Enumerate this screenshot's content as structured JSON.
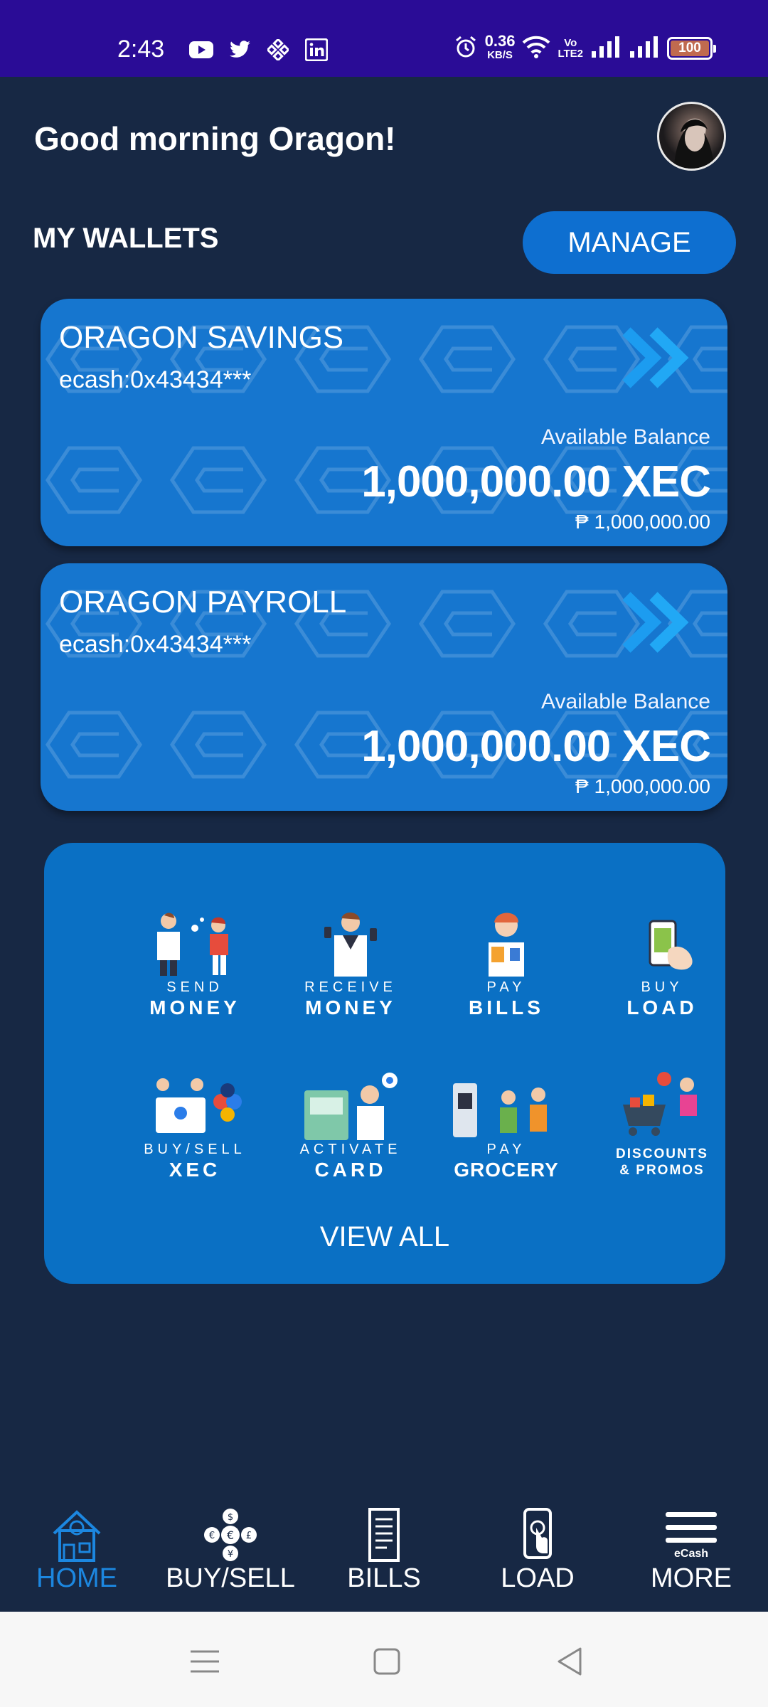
{
  "status_bar": {
    "time": "2:43",
    "net_speed_value": "0.36",
    "net_speed_unit": "KB/S",
    "volte_top": "Vo",
    "volte_bottom": "LTE2",
    "battery": "100",
    "app_icons": [
      "youtube-icon",
      "twitter-icon",
      "binance-icon",
      "linkedin-icon"
    ]
  },
  "header": {
    "greeting": "Good morning Oragon!"
  },
  "wallets_section": {
    "title": "MY WALLETS",
    "manage_label": "MANAGE"
  },
  "wallets": [
    {
      "name": "ORAGON SAVINGS",
      "address": "ecash:0x43434***",
      "balance_label": "Available Balance",
      "balance_xec": "1,000,000.00 XEC",
      "balance_php": "₱ 1,000,000.00"
    },
    {
      "name": "ORAGON PAYROLL",
      "address": "ecash:0x43434***",
      "balance_label": "Available Balance",
      "balance_xec": "1,000,000.00 XEC",
      "balance_php": "₱ 1,000,000.00"
    }
  ],
  "services": [
    {
      "small": "SEND",
      "big": "MONEY"
    },
    {
      "small": "RECEIVE",
      "big": "MONEY"
    },
    {
      "small": "PAY",
      "big": "BILLS"
    },
    {
      "small": "BUY",
      "big": "LOAD"
    },
    {
      "small": "BUY/SELL",
      "big": "XEC"
    },
    {
      "small": "ACTIVATE",
      "big": "CARD"
    },
    {
      "small": "PAY",
      "big": "GROCERY"
    },
    {
      "line1": "DISCOUNTS",
      "line2": "& PROMOS"
    }
  ],
  "view_all_label": "VIEW ALL",
  "bottom_nav": [
    {
      "label": "HOME",
      "active": true
    },
    {
      "label": "BUY/SELL"
    },
    {
      "label": "BILLS"
    },
    {
      "label": "LOAD"
    },
    {
      "label": "MORE",
      "badge": "eCash"
    }
  ],
  "colors": {
    "background": "#172844",
    "status_bar": "#2a0c96",
    "card_blue": "#1676cf",
    "services_blue": "#0a70c4",
    "active_nav": "#1c87e0"
  }
}
